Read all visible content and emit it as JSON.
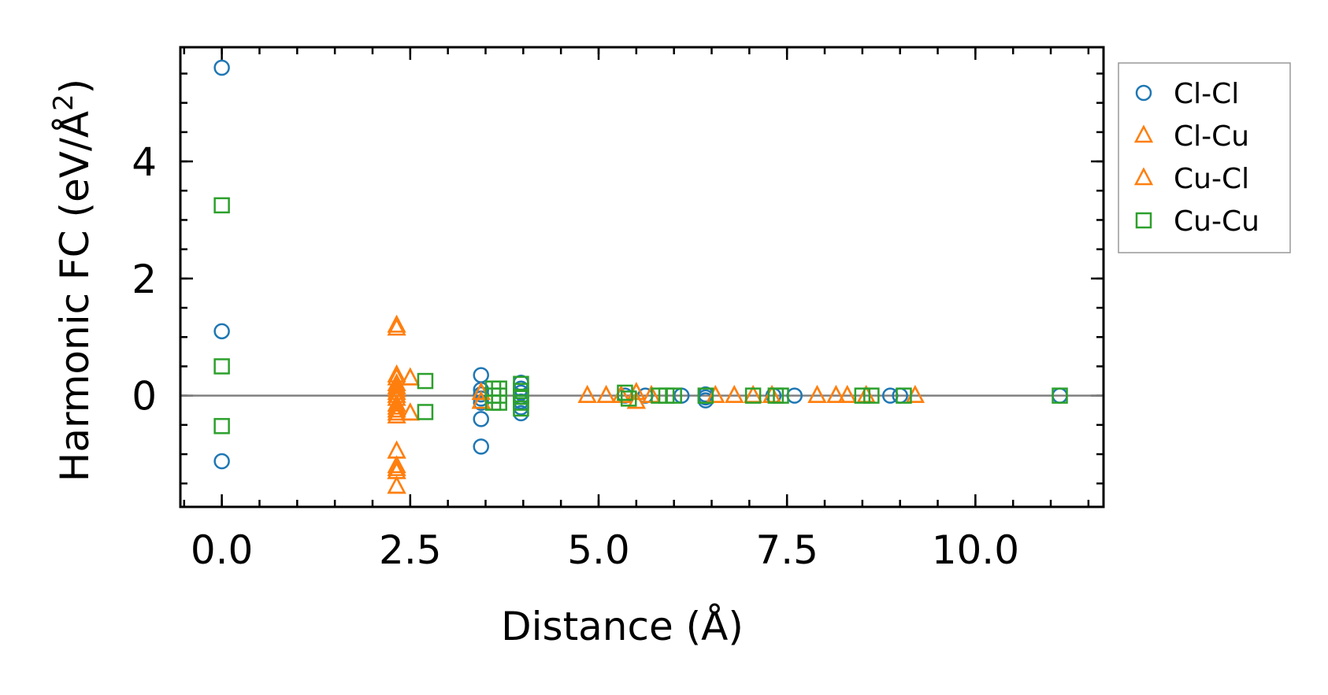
{
  "chart_data": {
    "type": "scatter",
    "title": "",
    "xlabel": "Distance (Å)",
    "ylabel_main": "Harmonic FC (eV/Å",
    "ylabel_sup": "2",
    "ylabel_close": ")",
    "xlim": [
      -0.55,
      11.7
    ],
    "ylim": [
      -1.9,
      5.95
    ],
    "xticks": [
      0.0,
      2.5,
      5.0,
      7.5,
      10.0
    ],
    "xtick_labels": [
      "0.0",
      "2.5",
      "5.0",
      "7.5",
      "10.0"
    ],
    "yticks": [
      0,
      2,
      4
    ],
    "ytick_labels": [
      "0",
      "2",
      "4"
    ],
    "x_minor_step": 0.5,
    "y_minor_step": 0.5,
    "zero_line": true,
    "legend_position": "outside-right-top",
    "series": [
      {
        "name": "Cl-Cl",
        "marker": "circle",
        "color": "#1f77b4",
        "x": [
          0.0,
          0.0,
          0.0,
          3.44,
          3.44,
          3.44,
          3.44,
          3.44,
          3.44,
          3.44,
          3.97,
          3.97,
          3.97,
          3.97,
          3.97,
          3.97,
          3.97,
          5.35,
          5.62,
          6.1,
          6.42,
          6.42,
          6.42,
          7.32,
          7.6,
          8.87,
          9.0,
          11.12
        ],
        "y": [
          5.6,
          1.1,
          -1.12,
          0.35,
          0.1,
          0.02,
          -0.05,
          -0.12,
          -0.4,
          -0.87,
          0.22,
          0.12,
          0.05,
          -0.02,
          -0.1,
          -0.2,
          -0.3,
          0.0,
          0.0,
          0.0,
          0.02,
          -0.03,
          -0.08,
          0.0,
          0.0,
          0.0,
          0.0,
          0.0
        ]
      },
      {
        "name": "Cl-Cu",
        "marker": "triangle",
        "color": "#ff7f0e",
        "x": [
          2.32,
          2.32,
          2.32,
          2.32,
          2.32,
          2.32,
          2.32,
          2.32,
          2.32,
          2.32,
          2.32,
          2.32,
          2.5,
          2.5,
          3.44,
          3.44,
          4.85,
          5.1,
          5.3,
          5.5,
          5.5,
          5.7,
          6.55,
          6.8,
          7.05,
          7.3,
          7.9,
          8.15,
          8.3,
          8.55,
          9.2
        ],
        "y": [
          1.15,
          0.3,
          0.15,
          0.05,
          -0.05,
          -0.2,
          -0.3,
          -0.35,
          -0.95,
          -1.2,
          -1.3,
          -1.55,
          0.3,
          -0.3,
          0.05,
          -0.1,
          0.0,
          0.0,
          0.0,
          0.05,
          -0.1,
          0.0,
          0.0,
          0.0,
          0.0,
          0.0,
          0.0,
          0.0,
          0.0,
          0.0,
          0.0
        ]
      },
      {
        "name": "Cu-Cl",
        "marker": "triangle",
        "color": "#ff7f0e",
        "x": [
          2.32,
          2.32,
          2.32,
          2.32,
          2.32,
          2.32,
          2.32,
          2.32,
          2.32,
          2.32,
          2.32,
          2.5,
          2.5,
          3.44,
          3.44,
          4.85,
          5.1,
          5.3,
          5.5,
          5.5,
          5.7,
          6.55,
          6.8,
          7.05,
          7.3,
          7.9,
          8.15,
          8.3,
          8.55,
          9.2
        ],
        "y": [
          1.2,
          0.35,
          0.2,
          0.1,
          0.0,
          -0.15,
          -0.25,
          -0.95,
          -1.25,
          -1.3,
          -1.55,
          0.3,
          -0.3,
          0.05,
          -0.1,
          0.0,
          0.0,
          0.0,
          0.05,
          -0.1,
          0.0,
          0.0,
          0.0,
          0.0,
          0.0,
          0.0,
          0.0,
          0.0,
          0.0,
          0.0
        ]
      },
      {
        "name": "Cu-Cu",
        "marker": "square",
        "color": "#2ca02c",
        "x": [
          0.0,
          0.0,
          0.0,
          2.7,
          2.7,
          3.6,
          3.6,
          3.6,
          3.68,
          3.68,
          3.68,
          3.97,
          3.97,
          3.97,
          3.97,
          3.97,
          5.35,
          5.4,
          5.8,
          5.9,
          6.0,
          6.42,
          7.05,
          7.35,
          7.42,
          8.5,
          8.62,
          9.05,
          11.12
        ],
        "y": [
          3.25,
          0.5,
          -0.52,
          0.25,
          -0.28,
          0.12,
          0.0,
          -0.12,
          0.12,
          0.0,
          -0.12,
          0.2,
          0.08,
          -0.02,
          -0.12,
          -0.22,
          0.05,
          -0.05,
          0.0,
          0.0,
          0.0,
          0.0,
          0.0,
          0.0,
          0.0,
          0.0,
          0.0,
          0.0,
          0.0
        ]
      }
    ]
  }
}
